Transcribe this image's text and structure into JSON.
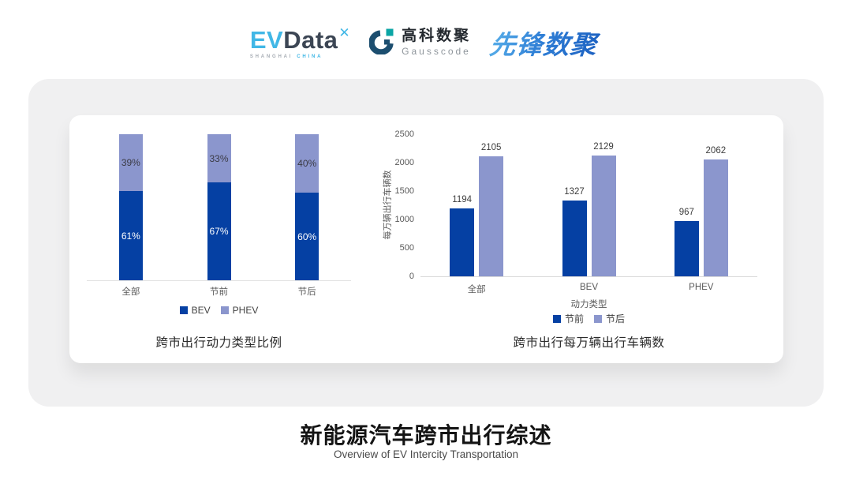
{
  "header": {
    "evdata": {
      "ev": "EV",
      "data": "Data",
      "x_icon": "✕",
      "tagline_left": "SHANGHAI",
      "tagline_right": "CHINA"
    },
    "gausscode": {
      "cn": "高科数聚",
      "en": "Gausscode"
    },
    "pioneer": {
      "text": "先锋数聚"
    }
  },
  "chart_data": [
    {
      "type": "bar",
      "subtype": "stacked-percent",
      "title": "跨市出行动力类型比例",
      "categories": [
        "全部",
        "节前",
        "节后"
      ],
      "series": [
        {
          "name": "BEV",
          "color": "#0540a3",
          "values": [
            61,
            67,
            60
          ],
          "labels": [
            "61%",
            "67%",
            "60%"
          ]
        },
        {
          "name": "PHEV",
          "color": "#8b96cd",
          "values": [
            39,
            33,
            40
          ],
          "labels": [
            "39%",
            "33%",
            "40%"
          ]
        }
      ],
      "legend": [
        "BEV",
        "PHEV"
      ],
      "legend_position": "bottom",
      "grid": false,
      "ylim": [
        0,
        100
      ]
    },
    {
      "type": "bar",
      "subtype": "grouped",
      "title": "跨市出行每万辆出行车辆数",
      "categories": [
        "全部",
        "BEV",
        "PHEV"
      ],
      "xlabel": "动力类型",
      "ylabel": "每万辆出行车辆数",
      "ylim": [
        0,
        2500
      ],
      "yticks": [
        0,
        500,
        1000,
        1500,
        2000,
        2500
      ],
      "series": [
        {
          "name": "节前",
          "color": "#0540a3",
          "values": [
            1194,
            1327,
            967
          ]
        },
        {
          "name": "节后",
          "color": "#8b96cd",
          "values": [
            2105,
            2129,
            2062
          ]
        }
      ],
      "legend": [
        "节前",
        "节后"
      ],
      "legend_position": "bottom",
      "grid": false
    }
  ],
  "footer": {
    "title": "新能源汽车跨市出行综述",
    "subtitle": "Overview of EV Intercity Transportation"
  },
  "colors": {
    "bev_dark_blue": "#0540a3",
    "phev_light_blue": "#8b96cd",
    "panel_gray": "#f0f0f1",
    "evdata_cyan": "#41b7e6",
    "gausscode_navy": "#1c4e6f",
    "gausscode_teal": "#0ba5a5",
    "pioneer_blue": "#2e80d5"
  }
}
